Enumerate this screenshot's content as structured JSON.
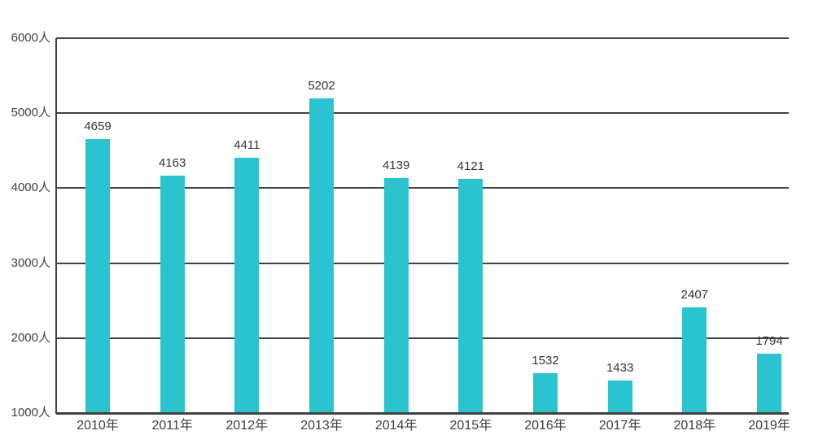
{
  "chart_data": {
    "type": "bar",
    "categories": [
      "2010年",
      "2011年",
      "2012年",
      "2013年",
      "2014年",
      "2015年",
      "2016年",
      "2017年",
      "2018年",
      "2019年"
    ],
    "values": [
      4659,
      4163,
      4411,
      5202,
      4139,
      4121,
      1532,
      1433,
      2407,
      1794
    ],
    "data_labels": [
      "4659",
      "4163",
      "4411",
      "5202",
      "4139",
      "4121",
      "1532",
      "1433",
      "2407",
      "1794"
    ],
    "title": "",
    "xlabel": "",
    "ylabel": "人",
    "ylim": [
      1000,
      6000
    ],
    "ytick_interval": 1000,
    "ytick_labels": [
      "1000人",
      "2000人",
      "3000人",
      "4000人",
      "5000人",
      "6000人"
    ],
    "grid": true,
    "legend": "none",
    "colors": {
      "bar": "#2BC4CE",
      "gridline": "#414141",
      "axis_line": "#414141",
      "value_label_text": "#353535",
      "tick_label_text": "#404040",
      "background": "#ffffff"
    }
  }
}
